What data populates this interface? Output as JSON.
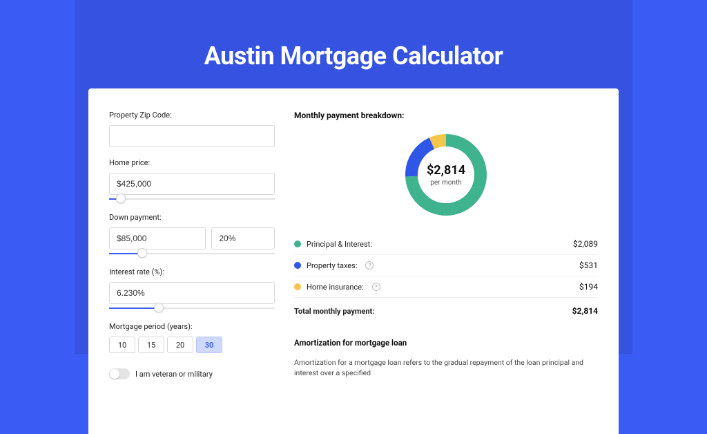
{
  "colors": {
    "page_bg": "#3b5bf5",
    "band_bg": "#3553e0",
    "card_bg": "#ffffff",
    "text_primary": "#111111",
    "text_secondary": "#555555",
    "input_border": "#d7d7d7",
    "slider_track": "#e4e4e4",
    "slider_fill": "#3b5bf5",
    "series_principal": "#3fb28e",
    "series_taxes": "#2f56e6",
    "series_insurance": "#f3c64b"
  },
  "page": {
    "title": "Austin Mortgage Calculator"
  },
  "inputs": {
    "zip": {
      "label": "Property Zip Code:",
      "value": "",
      "placeholder": ""
    },
    "home_price": {
      "label": "Home price:",
      "value": "$425,000",
      "slider_fill_pct": 7
    },
    "down_payment": {
      "label": "Down payment:",
      "amount_value": "$85,000",
      "percent_value": "20%",
      "slider_fill_pct": 20
    },
    "interest": {
      "label": "Interest rate (%):",
      "value": "6.230%",
      "slider_fill_pct": 30
    },
    "period": {
      "label": "Mortgage period (years):",
      "options": [
        "10",
        "15",
        "20",
        "30"
      ],
      "selected": "30"
    },
    "veteran": {
      "label": "I am veteran or military",
      "on": false
    }
  },
  "breakdown": {
    "title": "Monthly payment breakdown:",
    "center_value": "$2,814",
    "center_sub": "per month",
    "items": [
      {
        "label": "Principal & Interest:",
        "value": "$2,089",
        "color": "#3fb28e",
        "has_info": false,
        "pct": 74.2
      },
      {
        "label": "Property taxes:",
        "value": "$531",
        "color": "#2f56e6",
        "has_info": true,
        "pct": 18.9
      },
      {
        "label": "Home insurance:",
        "value": "$194",
        "color": "#f3c64b",
        "has_info": true,
        "pct": 6.9
      }
    ],
    "total_label": "Total monthly payment:",
    "total_value": "$2,814",
    "donut": {
      "stroke_width": 18,
      "radius": 50,
      "bg": "#ffffff"
    }
  },
  "amortization": {
    "title": "Amortization for mortgage loan",
    "text": "Amortization for a mortgage loan refers to the gradual repayment of the loan principal and interest over a specified"
  }
}
